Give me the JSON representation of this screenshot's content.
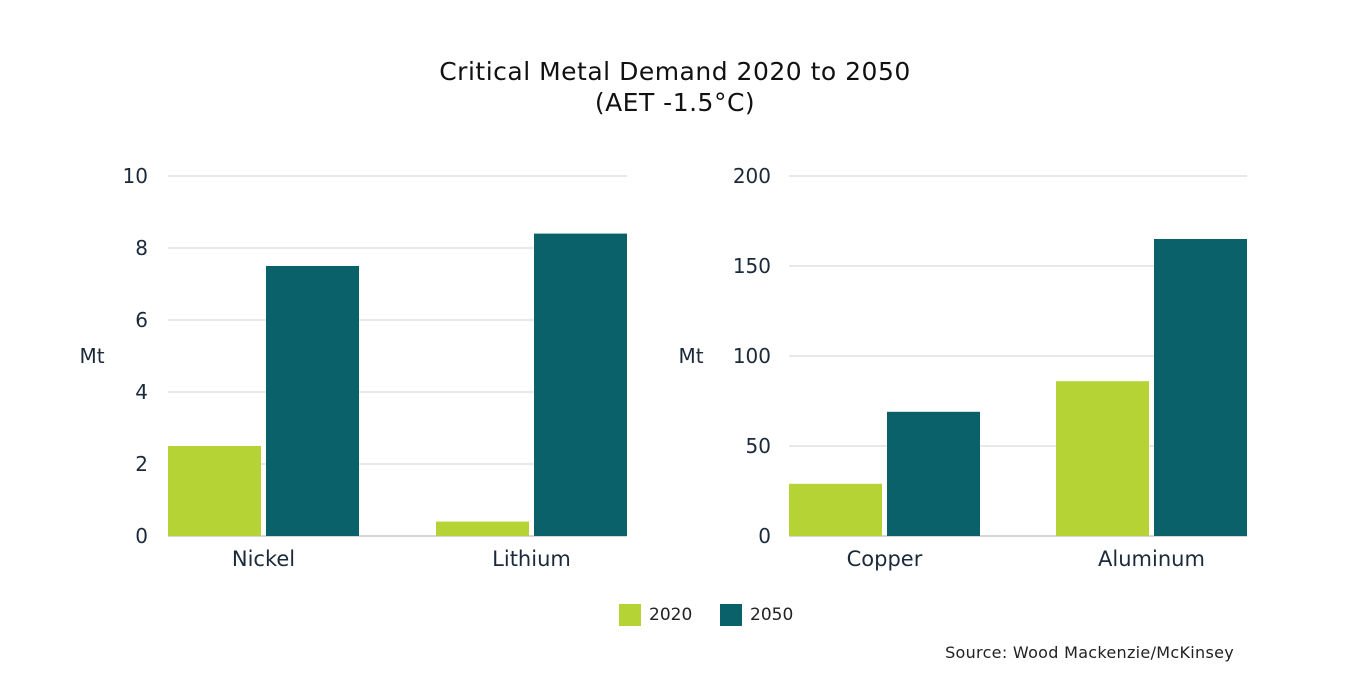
{
  "title_line1": "Critical Metal Demand 2020 to 2050",
  "title_line2": "(AET -1.5°C)",
  "source": "Source: Wood Mackenzie/McKinsey",
  "colors": {
    "s2020": "#b5d334",
    "s2050": "#0a6169",
    "grid": "#d9d9d9",
    "axis": "#c8c8c8",
    "text": "#1b2a3a"
  },
  "legend": [
    {
      "label": "2020",
      "color": "#b5d334"
    },
    {
      "label": "2050",
      "color": "#0a6169"
    }
  ],
  "chart_data": [
    {
      "type": "bar",
      "title": "Critical Metal Demand 2020 to 2050 (AET -1.5°C)",
      "categories": [
        "Nickel",
        "Lithium"
      ],
      "series": [
        {
          "name": "2020",
          "values": [
            2.5,
            0.4
          ]
        },
        {
          "name": "2050",
          "values": [
            7.5,
            8.4
          ]
        }
      ],
      "ylabel": "Mt",
      "ylim": [
        0,
        10
      ],
      "yticks": [
        0,
        2,
        4,
        6,
        8,
        10
      ],
      "grid": true,
      "legend": "bottom"
    },
    {
      "type": "bar",
      "title": "Critical Metal Demand 2020 to 2050 (AET -1.5°C)",
      "categories": [
        "Copper",
        "Aluminum"
      ],
      "series": [
        {
          "name": "2020",
          "values": [
            29,
            86
          ]
        },
        {
          "name": "2050",
          "values": [
            69,
            165
          ]
        }
      ],
      "ylabel": "Mt",
      "ylim": [
        0,
        200
      ],
      "yticks": [
        0,
        50,
        100,
        150,
        200
      ],
      "grid": true,
      "legend": "bottom"
    }
  ]
}
